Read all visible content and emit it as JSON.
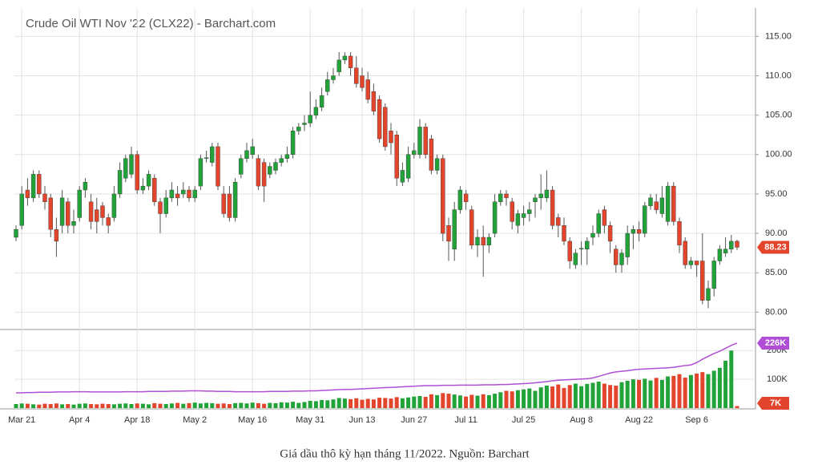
{
  "chart_data": {
    "type": "candlestick",
    "title": "Crude Oil WTI Nov '22 (CLX22) - Barchart.com",
    "caption": "Giá dầu thô kỳ hạn tháng 11/2022. Nguồn: Barchart",
    "up_color": "#22a33a",
    "down_color": "#e3452c",
    "categories": [
      null,
      "Mar 21",
      null,
      null,
      null,
      null,
      null,
      null,
      null,
      null,
      null,
      "Apr 4",
      null,
      null,
      null,
      null,
      null,
      null,
      null,
      null,
      null,
      "Apr 18",
      null,
      null,
      null,
      null,
      null,
      null,
      null,
      null,
      null,
      "May 2",
      null,
      null,
      null,
      null,
      null,
      null,
      null,
      null,
      null,
      "May 16",
      null,
      null,
      null,
      null,
      null,
      null,
      null,
      null,
      null,
      "May 31",
      null,
      null,
      null,
      null,
      null,
      null,
      null,
      null,
      "Jun 13",
      null,
      null,
      null,
      null,
      null,
      null,
      null,
      null,
      "Jun 27",
      null,
      null,
      null,
      null,
      null,
      null,
      null,
      null,
      "Jul 11",
      null,
      null,
      null,
      null,
      null,
      null,
      null,
      null,
      null,
      "Jul 25",
      null,
      null,
      null,
      null,
      null,
      null,
      null,
      null,
      null,
      "Aug 8",
      null,
      null,
      null,
      null,
      null,
      null,
      null,
      null,
      null,
      "Aug 22",
      null,
      null,
      null,
      null,
      null,
      null,
      null,
      null,
      null,
      "Sep 6",
      null,
      null,
      null,
      null,
      null,
      null,
      null
    ],
    "open": [
      89.5,
      91,
      95.5,
      94.5,
      97.5,
      95,
      94.5,
      90.5,
      91,
      94,
      91,
      92,
      95.5,
      94,
      93,
      93.5,
      92,
      92,
      95,
      97,
      97.5,
      100,
      95.5,
      96,
      97,
      94,
      92.5,
      94.5,
      95,
      95,
      95.5,
      94.5,
      96,
      99.5,
      99,
      101,
      95,
      95,
      92,
      97.5,
      99.5,
      100,
      99.5,
      99,
      97.5,
      98,
      99,
      99.5,
      100,
      103,
      103.8,
      104,
      105,
      106,
      108,
      109.5,
      110.5,
      112,
      112.5,
      111,
      110,
      109.5,
      108,
      107,
      106,
      103,
      102.5,
      96.5,
      97,
      100,
      100,
      103.5,
      102,
      98,
      99.5,
      91,
      88,
      93,
      95,
      93,
      88.5,
      89.5,
      88.5,
      90,
      94,
      95,
      94,
      91,
      92,
      92.5,
      94,
      94.5,
      94.5,
      95.5,
      92,
      91,
      89,
      86,
      88,
      88,
      89.5,
      90,
      93,
      91,
      88,
      86,
      87,
      90,
      90.5,
      90,
      93.5,
      94,
      92.5,
      91.5,
      96,
      91.5,
      89,
      86,
      86.5,
      86.5,
      81.5,
      83,
      86.5,
      87.5,
      88,
      89
    ],
    "high": [
      91,
      96,
      97,
      98,
      98,
      96,
      95,
      92,
      95.5,
      94.5,
      93,
      96,
      97,
      95,
      94.5,
      94,
      92.5,
      96,
      99,
      100,
      101,
      100.5,
      97,
      98,
      97.5,
      94.5,
      95.5,
      96.5,
      96,
      96.5,
      96,
      96,
      100,
      100.5,
      101.5,
      101.5,
      96,
      96,
      97,
      100,
      101.5,
      102,
      100,
      99.5,
      99,
      99.5,
      100,
      101,
      103.5,
      104,
      105,
      108,
      107,
      108.5,
      110.5,
      111,
      113,
      113,
      113,
      112.5,
      111,
      110.5,
      109,
      107.5,
      106.5,
      104,
      103,
      99,
      101,
      101.5,
      104.5,
      104,
      102.5,
      100,
      100,
      92,
      94,
      96,
      95.5,
      93.5,
      90.5,
      91,
      90,
      95,
      95.5,
      95.5,
      94.5,
      93,
      93.5,
      94,
      95,
      97.5,
      98,
      96,
      92.5,
      92,
      89.5,
      88,
      89,
      89.5,
      91,
      93,
      93.5,
      91.5,
      88.5,
      88,
      91,
      91,
      91.5,
      94,
      95,
      95,
      96,
      96.5,
      96.5,
      92,
      89.5,
      87,
      86.5,
      90,
      84,
      87,
      88.5,
      89.5,
      89.8,
      89.2
    ],
    "low": [
      89,
      90.5,
      93.5,
      94,
      94.5,
      93,
      89.5,
      87,
      90,
      90,
      90,
      91.5,
      94.5,
      90.5,
      90,
      91,
      90,
      91.5,
      94.5,
      96.5,
      97,
      95,
      95,
      95.5,
      93.5,
      90,
      92,
      94,
      93.5,
      94.5,
      94,
      94,
      95.5,
      99,
      98.5,
      95.5,
      92,
      91.5,
      91.5,
      97,
      99,
      99.5,
      95.5,
      94,
      97,
      97.5,
      98.5,
      99,
      99.5,
      102.5,
      103,
      103.5,
      104.5,
      105.5,
      107.5,
      109,
      110,
      111.5,
      110,
      108.5,
      108,
      106.5,
      105,
      101.5,
      100.5,
      100,
      96,
      96,
      96.5,
      99.5,
      99.5,
      99.5,
      97.5,
      97.5,
      89,
      86.5,
      86.5,
      92.5,
      93,
      88,
      87,
      84.5,
      87.5,
      89.5,
      93.5,
      93.5,
      90.5,
      90,
      91,
      91.5,
      92,
      93,
      94,
      90.5,
      89.5,
      88.5,
      85.5,
      85.5,
      86,
      86,
      88.5,
      89.5,
      90,
      87.5,
      85,
      85,
      86,
      88,
      89,
      89.5,
      93,
      92.5,
      92,
      91,
      91,
      87.5,
      85.5,
      85.5,
      84.5,
      81,
      80.5,
      82,
      86,
      87,
      87.5,
      87.9
    ],
    "close": [
      90.5,
      95,
      94.5,
      97.5,
      95,
      94,
      90.5,
      89,
      94.5,
      91,
      91.5,
      95.5,
      96.5,
      91.5,
      91.5,
      92,
      91,
      95,
      98,
      99.5,
      100,
      95.5,
      96,
      97.5,
      94,
      92.5,
      94.5,
      95.5,
      94.5,
      95.5,
      94.5,
      95.5,
      99.5,
      99.6,
      101,
      96,
      92.5,
      92,
      96.5,
      99.5,
      100.5,
      101,
      96,
      96,
      98.5,
      99,
      99.5,
      100,
      103,
      103.5,
      104,
      105,
      106,
      107.5,
      109.5,
      110,
      112,
      112.5,
      111,
      109,
      108.5,
      107,
      105.5,
      102,
      101,
      101.5,
      97,
      98,
      100,
      100.5,
      103.5,
      100,
      98,
      99.5,
      90,
      89,
      93,
      95.5,
      94,
      88.5,
      89.5,
      88.5,
      89.5,
      94,
      95,
      94.5,
      91.5,
      92.5,
      92.5,
      93,
      94.5,
      95,
      95.5,
      91,
      91,
      89,
      86.5,
      87.5,
      88.1,
      89,
      90,
      92.5,
      91,
      89,
      86,
      87.5,
      90,
      90.5,
      90,
      93.5,
      94.5,
      93,
      94.5,
      96,
      91.5,
      88.5,
      86,
      86.5,
      86,
      81.5,
      83,
      86.5,
      88,
      88,
      89,
      88.23
    ],
    "ylim": [
      77.9,
      118.6
    ],
    "yticks": [
      {
        "value": 80,
        "label": "80.00"
      },
      {
        "value": 85,
        "label": "85.00"
      },
      {
        "value": 90,
        "label": "90.00"
      },
      {
        "value": 95,
        "label": "95.00"
      },
      {
        "value": 100,
        "label": "100.00"
      },
      {
        "value": 105,
        "label": "105.00"
      },
      {
        "value": 110,
        "label": "110.00"
      },
      {
        "value": 115,
        "label": "115.00"
      }
    ],
    "grid": true,
    "volume": {
      "values": [
        14,
        16,
        15,
        13,
        12,
        15,
        14,
        16,
        13,
        14,
        12,
        15,
        16,
        14,
        13,
        15,
        14,
        13,
        15,
        16,
        14,
        16,
        15,
        13,
        17,
        15,
        14,
        16,
        18,
        15,
        17,
        19,
        16,
        18,
        17,
        15,
        16,
        14,
        17,
        18,
        16,
        19,
        17,
        15,
        18,
        17,
        20,
        19,
        22,
        18,
        21,
        25,
        24,
        28,
        27,
        30,
        35,
        33,
        31,
        34,
        29,
        32,
        30,
        36,
        35,
        33,
        38,
        34,
        37,
        40,
        42,
        39,
        48,
        45,
        52,
        50,
        47,
        44,
        40,
        46,
        43,
        48,
        45,
        50,
        55,
        60,
        58,
        62,
        65,
        68,
        60,
        72,
        78,
        75,
        82,
        70,
        80,
        85,
        76,
        84,
        88,
        92,
        85,
        80,
        78,
        90,
        95,
        100,
        98,
        102,
        96,
        105,
        98,
        110,
        112,
        118,
        106,
        115,
        120,
        125,
        118,
        130,
        140,
        165,
        200,
        7
      ],
      "last_label": "7K",
      "vlim": [
        0,
        265
      ],
      "vticks": [
        {
          "value": 100,
          "label": "100K"
        },
        {
          "value": 200,
          "label": "200K"
        }
      ]
    },
    "open_interest": {
      "color": "#b04fd6",
      "values": [
        53,
        53,
        54,
        54,
        55,
        55,
        55,
        56,
        56,
        56,
        57,
        57,
        57,
        56,
        56,
        56,
        56,
        56,
        56,
        57,
        57,
        57,
        57,
        58,
        58,
        58,
        58,
        59,
        59,
        59,
        60,
        60,
        60,
        59,
        59,
        58,
        58,
        58,
        57,
        57,
        57,
        57,
        57,
        57,
        58,
        58,
        58,
        58,
        59,
        59,
        59,
        60,
        60,
        61,
        62,
        63,
        64,
        65,
        65,
        66,
        67,
        68,
        69,
        70,
        71,
        72,
        73,
        74,
        75,
        76,
        77,
        78,
        78,
        78,
        79,
        79,
        79,
        80,
        80,
        80,
        80,
        81,
        81,
        81,
        82,
        82,
        83,
        84,
        85,
        86,
        88,
        90,
        92,
        95,
        97,
        98,
        99,
        100,
        101,
        102,
        105,
        110,
        116,
        122,
        126,
        128,
        130,
        133,
        135,
        136,
        137,
        138,
        139,
        140,
        142,
        145,
        148,
        150,
        158,
        170,
        180,
        190,
        198,
        208,
        218,
        226
      ],
      "last_label": "226K"
    }
  }
}
